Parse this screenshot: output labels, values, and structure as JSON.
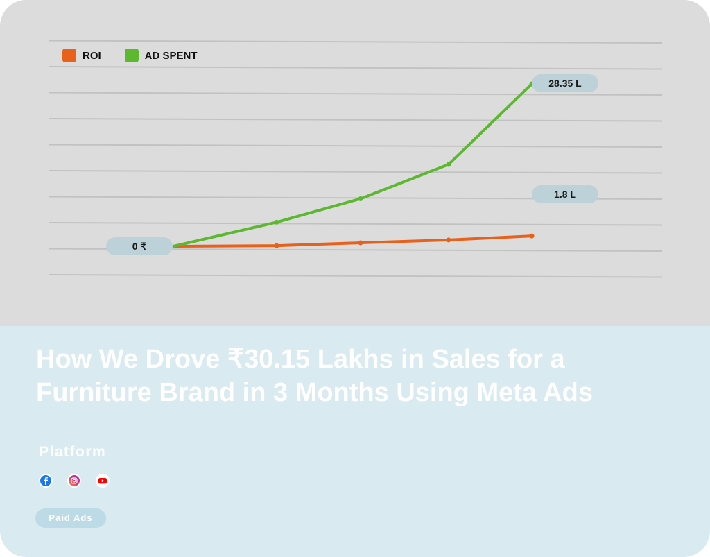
{
  "chart_data": {
    "type": "line",
    "x": [
      0,
      1,
      2,
      3,
      4
    ],
    "series": [
      {
        "name": "ROI",
        "color": "#e8611a",
        "values": [
          0,
          0.1,
          0.6,
          1.1,
          1.8
        ]
      },
      {
        "name": "AD SPENT",
        "color": "#5bb82f",
        "values": [
          0,
          4.2,
          8.3,
          14.3,
          28.35
        ]
      }
    ],
    "value_labels": {
      "start": "0 ₹",
      "ad_spent_end": "28.35 L",
      "roi_end": "1.8 L"
    },
    "grid": true,
    "legend": "top-left"
  },
  "legend": [
    {
      "label": "ROI",
      "color": "#e8611a"
    },
    {
      "label": "AD SPENT",
      "color": "#5bb82f"
    }
  ],
  "headline": "How We Drove ₹30.15 Lakhs in Sales for a Furniture Brand in 3 Months Using Meta Ads",
  "platform": {
    "label": "Platform",
    "icons": [
      "facebook-icon",
      "instagram-icon",
      "youtube-icon"
    ]
  },
  "tag": "Paid Ads",
  "colors": {
    "card_bottom": "#d9eaf1",
    "chart_bg": "#dcdcdc",
    "chip": "#bcd2d8"
  }
}
